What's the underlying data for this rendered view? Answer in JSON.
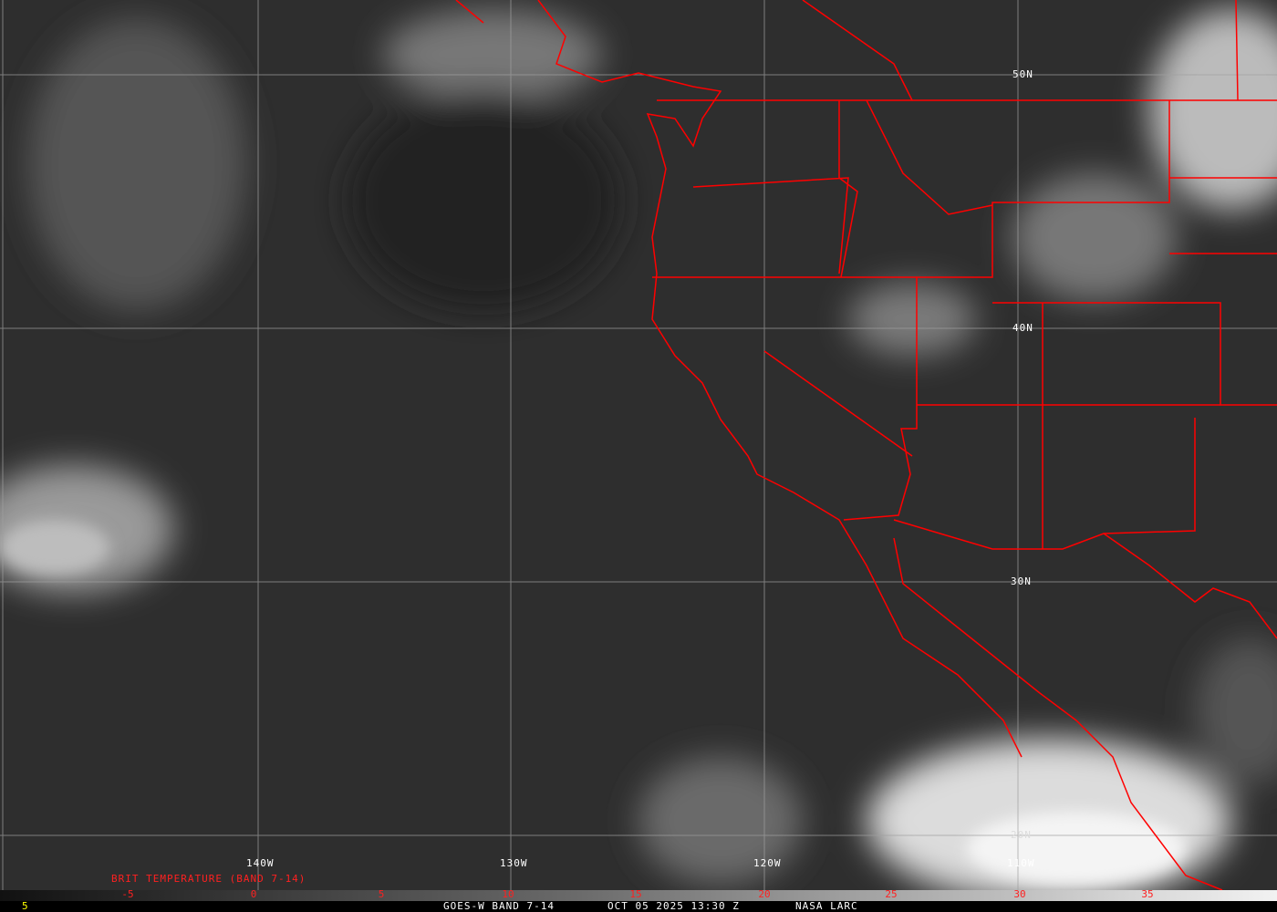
{
  "map": {
    "lat_labels": [
      "50N",
      "40N",
      "30N",
      "20N"
    ],
    "lon_labels": [
      "140W",
      "130W",
      "120W",
      "110W"
    ],
    "coastline_color": "#ff0000",
    "grid_color": "#a0a0a0"
  },
  "legend": {
    "title": "BRIT TEMPERATURE (BAND 7-14)",
    "ticks": [
      "-5",
      "0",
      "5",
      "10",
      "15",
      "20",
      "25",
      "30",
      "35"
    ],
    "left_value": "5"
  },
  "footer": {
    "satellite": "GOES-W BAND 7-14",
    "datetime": "OCT 05 2025 13:30 Z",
    "credit": "NASA LARC"
  }
}
